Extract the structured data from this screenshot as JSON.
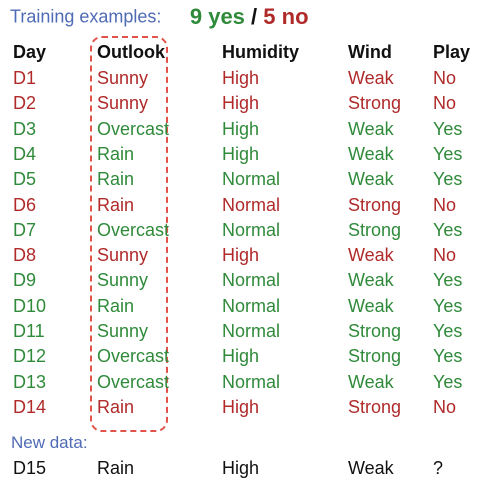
{
  "title": {
    "label": "Training examples:",
    "yes_count": "9 yes",
    "slash": "/",
    "no_count": "5 no"
  },
  "columns": [
    "Day",
    "Outlook",
    "Humidity",
    "Wind",
    "Play"
  ],
  "rows": [
    {
      "day": "D1",
      "outlook": "Sunny",
      "humidity": "High",
      "wind": "Weak",
      "play": "No",
      "class": "neg"
    },
    {
      "day": "D2",
      "outlook": "Sunny",
      "humidity": "High",
      "wind": "Strong",
      "play": "No",
      "class": "neg"
    },
    {
      "day": "D3",
      "outlook": "Overcast",
      "humidity": "High",
      "wind": "Weak",
      "play": "Yes",
      "class": "pos"
    },
    {
      "day": "D4",
      "outlook": "Rain",
      "humidity": "High",
      "wind": "Weak",
      "play": "Yes",
      "class": "pos"
    },
    {
      "day": "D5",
      "outlook": "Rain",
      "humidity": "Normal",
      "wind": "Weak",
      "play": "Yes",
      "class": "pos"
    },
    {
      "day": "D6",
      "outlook": "Rain",
      "humidity": "Normal",
      "wind": "Strong",
      "play": "No",
      "class": "neg"
    },
    {
      "day": "D7",
      "outlook": "Overcast",
      "humidity": "Normal",
      "wind": "Strong",
      "play": "Yes",
      "class": "pos"
    },
    {
      "day": "D8",
      "outlook": "Sunny",
      "humidity": "High",
      "wind": "Weak",
      "play": "No",
      "class": "neg"
    },
    {
      "day": "D9",
      "outlook": "Sunny",
      "humidity": "Normal",
      "wind": "Weak",
      "play": "Yes",
      "class": "pos"
    },
    {
      "day": "D10",
      "outlook": "Rain",
      "humidity": "Normal",
      "wind": "Weak",
      "play": "Yes",
      "class": "pos"
    },
    {
      "day": "D11",
      "outlook": "Sunny",
      "humidity": "Normal",
      "wind": "Strong",
      "play": "Yes",
      "class": "pos"
    },
    {
      "day": "D12",
      "outlook": "Overcast",
      "humidity": "High",
      "wind": "Strong",
      "play": "Yes",
      "class": "pos"
    },
    {
      "day": "D13",
      "outlook": "Overcast",
      "humidity": "Normal",
      "wind": "Weak",
      "play": "Yes",
      "class": "pos"
    },
    {
      "day": "D14",
      "outlook": "Rain",
      "humidity": "High",
      "wind": "Strong",
      "play": "No",
      "class": "neg"
    }
  ],
  "new_data": {
    "label": "New data:",
    "row": {
      "day": "D15",
      "outlook": "Rain",
      "humidity": "High",
      "wind": "Weak",
      "play": "?"
    }
  },
  "colors": {
    "positive": "#2f8a3a",
    "negative": "#b02a2a",
    "label_blue": "#4f6bb5",
    "highlight_box": "#e0524a"
  }
}
